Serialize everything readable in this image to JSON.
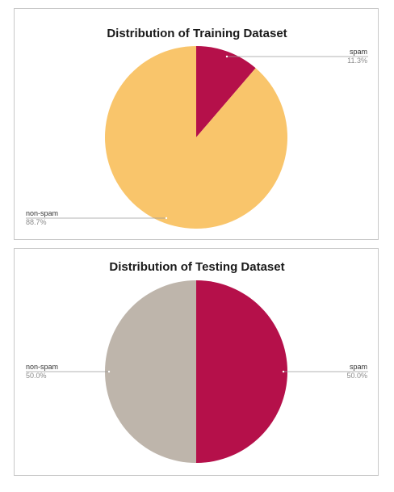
{
  "colors": {
    "spam": "#b5104a",
    "non_spam_train": "#f9c56b",
    "non_spam_test": "#beb5ab"
  },
  "chart_data": [
    {
      "type": "pie",
      "title": "Distribution of Training Dataset",
      "slices": [
        {
          "label": "spam",
          "value": 11.3,
          "pct_label": "11.3%"
        },
        {
          "label": "non-spam",
          "value": 88.7,
          "pct_label": "88.7%"
        }
      ],
      "legend": "none"
    },
    {
      "type": "pie",
      "title": "Distribution of Testing Dataset",
      "slices": [
        {
          "label": "spam",
          "value": 50.0,
          "pct_label": "50.0%"
        },
        {
          "label": "non-spam",
          "value": 50.0,
          "pct_label": "50.0%"
        }
      ],
      "legend": "none"
    }
  ]
}
